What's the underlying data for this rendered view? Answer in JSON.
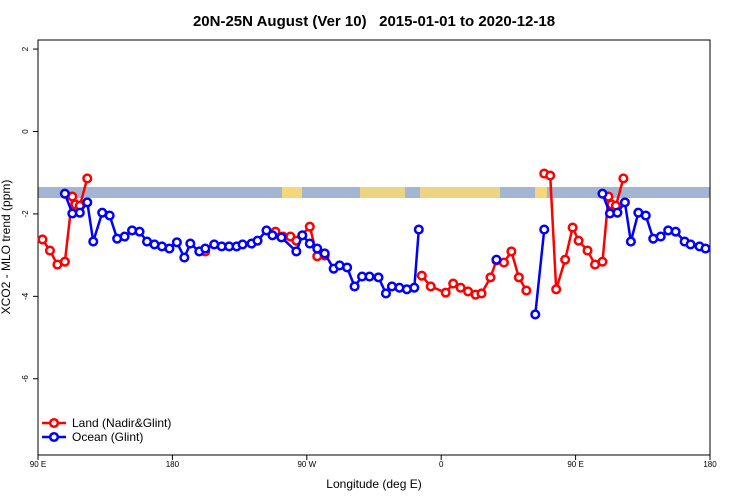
{
  "chart_data": {
    "type": "line",
    "title": "20N-25N August (Ver 10)   2015-01-01 to 2020-12-18",
    "x_label": "Longitude (deg E)",
    "y_label": "XCO2 - MLO trend (ppm)",
    "xlim": [
      90,
      540
    ],
    "xticks": [
      {
        "value": 90,
        "label": "90 E"
      },
      {
        "value": 180,
        "label": "180"
      },
      {
        "value": 270,
        "label": "90 W"
      },
      {
        "value": 360,
        "label": "0"
      },
      {
        "value": 450,
        "label": "90 E"
      },
      {
        "value": 540,
        "label": "180"
      }
    ],
    "ylim": [
      -7.85,
      2.22
    ],
    "yticks": [
      2,
      0,
      -2,
      -4,
      -6
    ],
    "legend": "bottom-left",
    "series": [
      {
        "name": "Land (Nadir&Glint)",
        "color": "#ff0000",
        "x": [
          93,
          98,
          103,
          108,
          113,
          115,
          118,
          123,
          null,
          202,
          null,
          249,
          254,
          259,
          263,
          272,
          277,
          282,
          null,
          347,
          353,
          363,
          368,
          373,
          378,
          383,
          387,
          393,
          397,
          402,
          407,
          412,
          417,
          null,
          429,
          433,
          437,
          443,
          448,
          452,
          458,
          463,
          468,
          472,
          474,
          477,
          482
        ],
        "values": [
          -2.62,
          -2.89,
          -3.23,
          -3.16,
          -1.58,
          -1.77,
          -1.8,
          -1.14,
          null,
          -2.91,
          null,
          -2.43,
          -2.55,
          -2.55,
          -2.65,
          -2.31,
          -3.03,
          -3.01,
          null,
          -3.5,
          -3.76,
          -3.91,
          -3.69,
          -3.79,
          -3.88,
          -3.96,
          -3.93,
          -3.54,
          -3.13,
          -3.18,
          -2.91,
          -3.54,
          -3.86,
          null,
          -1.02,
          -1.07,
          -3.83,
          -3.11,
          -2.33,
          -2.65,
          -2.89,
          -3.23,
          -3.16,
          -1.58,
          -1.77,
          -1.8,
          -1.14
        ]
      },
      {
        "name": "Ocean (Glint)",
        "color": "#0000ff",
        "x": [
          108,
          113,
          118,
          123,
          127,
          133,
          138,
          143,
          148,
          153,
          158,
          163,
          168,
          173,
          178,
          183,
          188,
          192,
          198,
          202,
          208,
          213,
          218,
          223,
          227,
          233,
          237,
          243,
          247,
          253,
          263,
          267,
          272,
          277,
          282,
          288,
          292,
          297,
          302,
          307,
          312,
          318,
          323,
          327,
          332,
          337,
          342,
          345,
          null,
          397,
          null,
          423,
          429,
          null,
          468,
          473,
          478,
          483,
          487,
          492,
          497,
          502,
          507,
          512,
          517,
          523,
          527,
          533,
          537
        ],
        "values": [
          -1.51,
          -1.99,
          -1.97,
          -1.72,
          -2.67,
          -1.97,
          -2.04,
          -2.6,
          -2.55,
          -2.4,
          -2.43,
          -2.67,
          -2.74,
          -2.79,
          -2.84,
          -2.69,
          -3.06,
          -2.72,
          -2.91,
          -2.84,
          -2.74,
          -2.79,
          -2.79,
          -2.79,
          -2.74,
          -2.72,
          -2.65,
          -2.4,
          -2.52,
          -2.57,
          -2.91,
          -2.52,
          -2.72,
          -2.84,
          -2.96,
          -3.33,
          -3.25,
          -3.3,
          -3.76,
          -3.52,
          -3.52,
          -3.54,
          -3.93,
          -3.76,
          -3.79,
          -3.83,
          -3.79,
          -2.38,
          null,
          -3.11,
          null,
          -4.44,
          -2.38,
          null,
          -1.51,
          -1.99,
          -1.97,
          -1.72,
          -2.67,
          -1.97,
          -2.04,
          -2.6,
          -2.55,
          -2.4,
          -2.43,
          -2.67,
          -2.74,
          -2.79,
          -2.84
        ]
      }
    ]
  }
}
